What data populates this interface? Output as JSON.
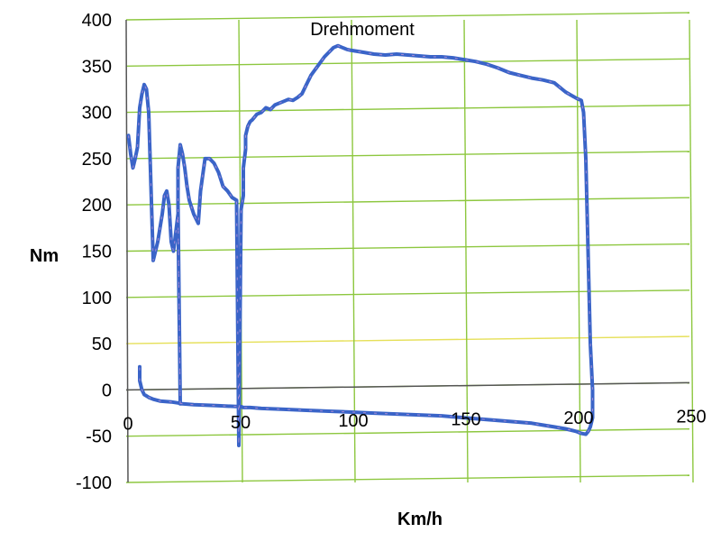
{
  "chart_data": {
    "type": "line",
    "title": "Drehmoment",
    "xlabel": "Km/h",
    "ylabel": "Nm",
    "xlim": [
      0,
      250
    ],
    "ylim": [
      -100,
      400
    ],
    "x_ticks": [
      0,
      50,
      100,
      150,
      200,
      250
    ],
    "y_ticks": [
      400,
      350,
      300,
      250,
      200,
      150,
      100,
      50,
      0,
      -50,
      -100
    ],
    "grid": true,
    "colors": {
      "series_line": "#3a64c8",
      "series_highlight": "#d49ad8",
      "grid_major": "#8dc73f",
      "grid_zero_neighbor": "#e6e05a",
      "axis": "#555555"
    },
    "series": [
      {
        "x": [
          1,
          2,
          3,
          4,
          5,
          6,
          7,
          8,
          9,
          10,
          11,
          12,
          13,
          14,
          15,
          16,
          17,
          18,
          19,
          20,
          21,
          22,
          23,
          24,
          23,
          23,
          24,
          25,
          26,
          27,
          28,
          30,
          32,
          33,
          35,
          37,
          39,
          41,
          43,
          45,
          47,
          49,
          50,
          51,
          52,
          52,
          53,
          53,
          54,
          55,
          56,
          57,
          58,
          60,
          62,
          64,
          66,
          68,
          70,
          72,
          74,
          76,
          78,
          80,
          82,
          85,
          88,
          90,
          92,
          94,
          96,
          98,
          100,
          105,
          110,
          115,
          120,
          125,
          130,
          135,
          140,
          145,
          150,
          155,
          160,
          165,
          170,
          175,
          180,
          185,
          190,
          195,
          200,
          202,
          203,
          204,
          205,
          206,
          207,
          207,
          206,
          205,
          204,
          202,
          200,
          195,
          190,
          185,
          180,
          170,
          160,
          150,
          140,
          130,
          120,
          110,
          100,
          90,
          80,
          70,
          60,
          55,
          52,
          51,
          50,
          40,
          30,
          25,
          23,
          20,
          15,
          12,
          10,
          8,
          7,
          6,
          6
        ],
        "y": [
          275,
          255,
          240,
          250,
          262,
          305,
          320,
          330,
          325,
          300,
          220,
          140,
          150,
          160,
          175,
          190,
          210,
          215,
          200,
          160,
          150,
          170,
          190,
          -15,
          200,
          240,
          265,
          255,
          240,
          220,
          205,
          190,
          180,
          215,
          250,
          250,
          245,
          235,
          220,
          215,
          208,
          205,
          -60,
          195,
          210,
          240,
          260,
          275,
          285,
          290,
          292,
          295,
          298,
          300,
          305,
          303,
          308,
          310,
          312,
          314,
          313,
          316,
          320,
          330,
          340,
          350,
          360,
          365,
          370,
          372,
          370,
          368,
          367,
          365,
          363,
          362,
          363,
          362,
          361,
          360,
          360,
          359,
          357,
          355,
          352,
          348,
          343,
          340,
          337,
          335,
          332,
          322,
          315,
          313,
          300,
          250,
          150,
          50,
          0,
          -30,
          -40,
          -45,
          -48,
          -47,
          -45,
          -42,
          -40,
          -38,
          -36,
          -34,
          -32,
          -30,
          -28,
          -27,
          -26,
          -25,
          -24,
          -23,
          -22,
          -21,
          -20,
          -19,
          -19,
          -18,
          -18,
          -17,
          -16,
          -15,
          -14,
          -13,
          -12,
          -10,
          -8,
          -5,
          0,
          10,
          25
        ]
      }
    ]
  }
}
